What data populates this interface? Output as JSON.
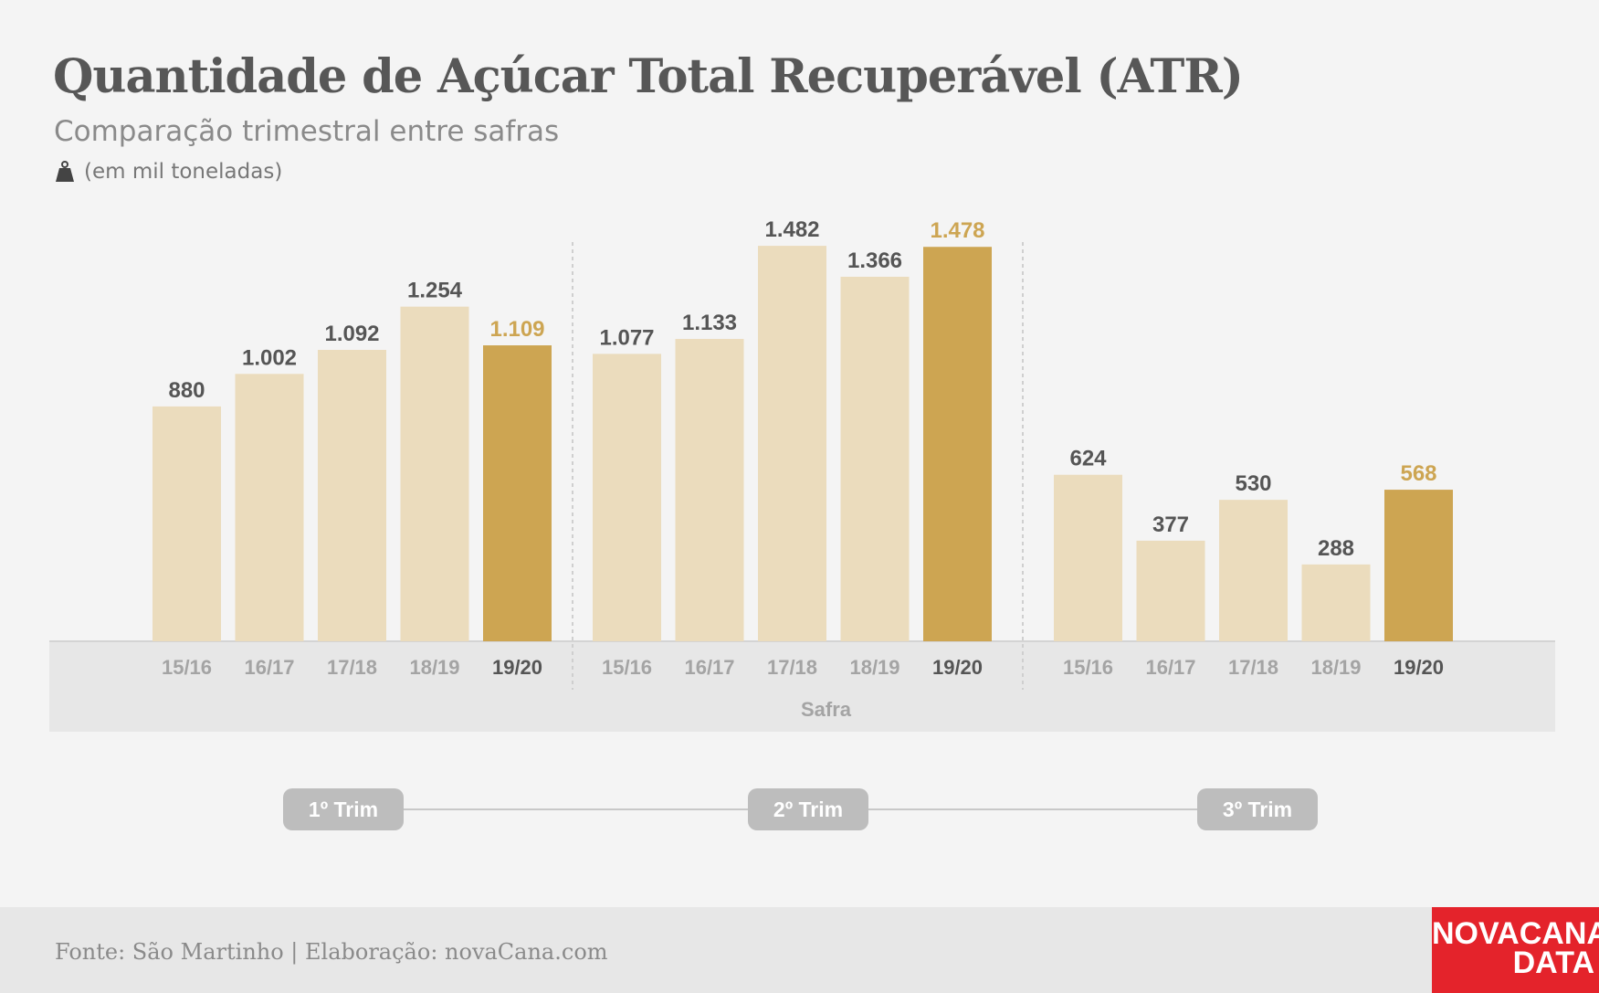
{
  "header": {
    "title": "Quantidade de Açúcar Total Recuperável (ATR)",
    "subtitle": "Comparação trimestral entre safras",
    "unit": "(em mil toneladas)"
  },
  "colors": {
    "bar_default": "#ebdcbd",
    "bar_highlight": "#cda552",
    "label_default": "#555555",
    "label_highlight": "#cda552",
    "tick_default": "#a4a4a4",
    "tick_highlight": "#555555"
  },
  "icons": {
    "unit": "weight-icon"
  },
  "chart_data": {
    "type": "bar",
    "xlabel": "Safra",
    "ylabel": "",
    "ylim": [
      0,
      1650
    ],
    "grid": false,
    "highlight_category": "19/20",
    "groups": [
      {
        "name": "1º Trim",
        "categories": [
          "15/16",
          "16/17",
          "17/18",
          "18/19",
          "19/20"
        ],
        "values": [
          880,
          1002,
          1092,
          1254,
          1109
        ],
        "labels": [
          "880",
          "1.002",
          "1.092",
          "1.254",
          "1.109"
        ]
      },
      {
        "name": "2º Trim",
        "categories": [
          "15/16",
          "16/17",
          "17/18",
          "18/19",
          "19/20"
        ],
        "values": [
          1077,
          1133,
          1482,
          1366,
          1478
        ],
        "labels": [
          "1.077",
          "1.133",
          "1.482",
          "1.366",
          "1.478"
        ]
      },
      {
        "name": "3º Trim",
        "categories": [
          "15/16",
          "16/17",
          "17/18",
          "18/19",
          "19/20"
        ],
        "values": [
          624,
          377,
          530,
          288,
          568
        ],
        "labels": [
          "624",
          "377",
          "530",
          "288",
          "568"
        ]
      }
    ]
  },
  "footer": {
    "source": "Fonte: São Martinho | Elaboração: novaCana.com",
    "logo_line1": "NOVACANA",
    "logo_line2": "DATA"
  }
}
